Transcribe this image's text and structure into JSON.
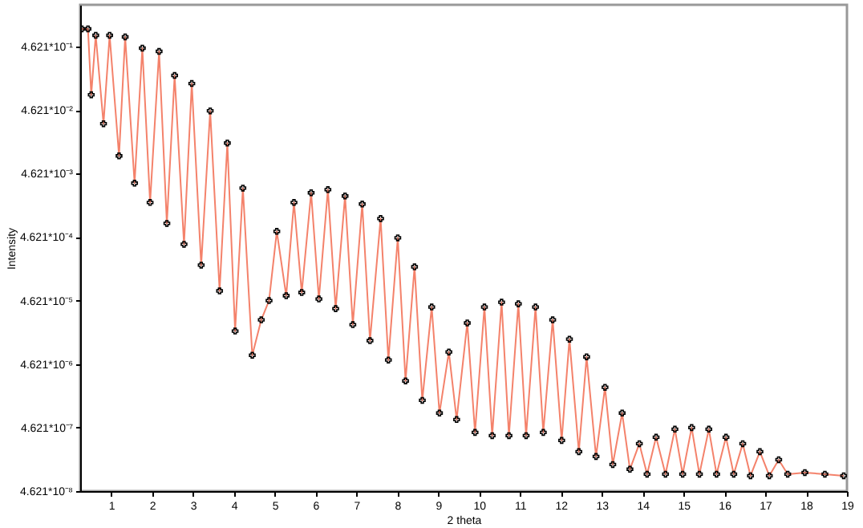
{
  "chart_data": {
    "type": "scatter",
    "xlabel": "2 theta",
    "ylabel": "Intensity",
    "log": "y",
    "grid": false,
    "legend": false,
    "xlim": [
      0.24,
      19
    ],
    "xticks": [
      1,
      2,
      3,
      4,
      5,
      6,
      7,
      8,
      9,
      10,
      11,
      12,
      13,
      14,
      15,
      16,
      17,
      18,
      19
    ],
    "ylim": [
      4.621e-08,
      2.1
    ],
    "yticks": [
      {
        "value": 0.4621,
        "label": "4.621*10⁻¹"
      },
      {
        "value": 0.04621,
        "label": "4.621*10⁻²"
      },
      {
        "value": 0.004621,
        "label": "4.621*10⁻³"
      },
      {
        "value": 0.0004621,
        "label": "4.621*10⁻⁴"
      },
      {
        "value": 4.621e-05,
        "label": "4.621*10⁻⁵"
      },
      {
        "value": 4.621e-06,
        "label": "4.621*10⁻⁶"
      },
      {
        "value": 4.621e-07,
        "label": "4.621*10⁻⁷"
      },
      {
        "value": 4.621e-08,
        "label": "4.621*10⁻⁸"
      }
    ],
    "x": [
      0.28,
      0.43,
      0.51,
      0.62,
      0.81,
      0.96,
      1.19,
      1.34,
      1.57,
      1.76,
      1.95,
      2.17,
      2.36,
      2.55,
      2.78,
      2.97,
      3.2,
      3.42,
      3.65,
      3.84,
      4.03,
      4.22,
      4.45,
      4.67,
      4.86,
      5.05,
      5.28,
      5.47,
      5.66,
      5.89,
      6.08,
      6.3,
      6.49,
      6.72,
      6.91,
      7.14,
      7.33,
      7.59,
      7.78,
      8.01,
      8.2,
      8.42,
      8.61,
      8.84,
      9.03,
      9.26,
      9.45,
      9.71,
      9.9,
      10.13,
      10.32,
      10.55,
      10.73,
      10.96,
      11.15,
      11.38,
      11.57,
      11.8,
      12.02,
      12.21,
      12.44,
      12.63,
      12.86,
      13.08,
      13.27,
      13.5,
      13.69,
      13.92,
      14.11,
      14.33,
      14.56,
      14.79,
      14.98,
      15.2,
      15.39,
      15.62,
      15.81,
      16.04,
      16.23,
      16.45,
      16.64,
      16.87,
      17.1,
      17.33,
      17.55,
      17.97,
      18.46,
      18.92
    ],
    "series": [
      {
        "type": "line",
        "marker": "none",
        "color": "#f4826b",
        "values": [
          0.877,
          0.877,
          0.0804,
          0.695,
          0.0282,
          0.695,
          0.00877,
          0.656,
          0.00326,
          0.436,
          0.00162,
          0.388,
          0.000759,
          0.162,
          0.000356,
          0.121,
          0.000167,
          0.0449,
          6.56e-05,
          0.014,
          1.53e-05,
          0.00273,
          6.37e-06,
          2.3e-05,
          4.62e-05,
          0.000568,
          5.51e-05,
          0.00162,
          6.19e-05,
          0.0023,
          4.9e-05,
          0.00258,
          3.45e-05,
          0.00205,
          1.93e-05,
          0.00153,
          1.08e-05,
          0.000904,
          5.35e-06,
          0.000449,
          2.51e-06,
          0.000157,
          1.24e-06,
          3.66e-05,
          7.82e-07,
          7.16e-06,
          6.19e-07,
          2.05e-05,
          3.88e-07,
          3.66e-05,
          3.45e-07,
          4.36e-05,
          3.45e-07,
          4.11e-05,
          3.45e-07,
          3.66e-05,
          3.88e-07,
          2.3e-05,
          2.9e-07,
          1.14e-05,
          1.93e-07,
          6.01e-06,
          1.62e-07,
          1.99e-06,
          1.21e-07,
          7.82e-07,
          1.02e-07,
          2.58e-07,
          8.53e-08,
          3.26e-07,
          8.53e-08,
          4.36e-07,
          8.53e-08,
          4.62e-07,
          8.53e-08,
          4.36e-07,
          8.53e-08,
          3.26e-07,
          8.53e-08,
          2.58e-07,
          8.05e-08,
          1.93e-07,
          8.05e-08,
          1.44e-07,
          8.53e-08,
          9.04e-08,
          8.53e-08,
          8.05e-08
        ]
      },
      {
        "type": "scatter",
        "marker": "cross",
        "color": "#000000",
        "values": [
          0.877,
          0.877,
          0.0804,
          0.695,
          0.0282,
          0.695,
          0.00877,
          0.656,
          0.00326,
          0.436,
          0.00162,
          0.388,
          0.000759,
          0.162,
          0.000356,
          0.121,
          0.000167,
          0.0449,
          6.56e-05,
          0.014,
          1.53e-05,
          0.00273,
          6.37e-06,
          2.3e-05,
          4.62e-05,
          0.000568,
          5.51e-05,
          0.00162,
          6.19e-05,
          0.0023,
          4.9e-05,
          0.00258,
          3.45e-05,
          0.00205,
          1.93e-05,
          0.00153,
          1.08e-05,
          0.000904,
          5.35e-06,
          0.000449,
          2.51e-06,
          0.000157,
          1.24e-06,
          3.66e-05,
          7.82e-07,
          7.16e-06,
          6.19e-07,
          2.05e-05,
          3.88e-07,
          3.66e-05,
          3.45e-07,
          4.36e-05,
          3.45e-07,
          4.11e-05,
          3.45e-07,
          3.66e-05,
          3.88e-07,
          2.3e-05,
          2.9e-07,
          1.14e-05,
          1.93e-07,
          6.01e-06,
          1.62e-07,
          1.99e-06,
          1.21e-07,
          7.82e-07,
          1.02e-07,
          2.58e-07,
          8.53e-08,
          3.26e-07,
          8.53e-08,
          4.36e-07,
          8.53e-08,
          4.62e-07,
          8.53e-08,
          4.36e-07,
          8.53e-08,
          3.26e-07,
          8.53e-08,
          2.58e-07,
          8.05e-08,
          1.93e-07,
          8.05e-08,
          1.44e-07,
          8.53e-08,
          9.04e-08,
          8.53e-08,
          8.05e-08
        ]
      }
    ]
  }
}
